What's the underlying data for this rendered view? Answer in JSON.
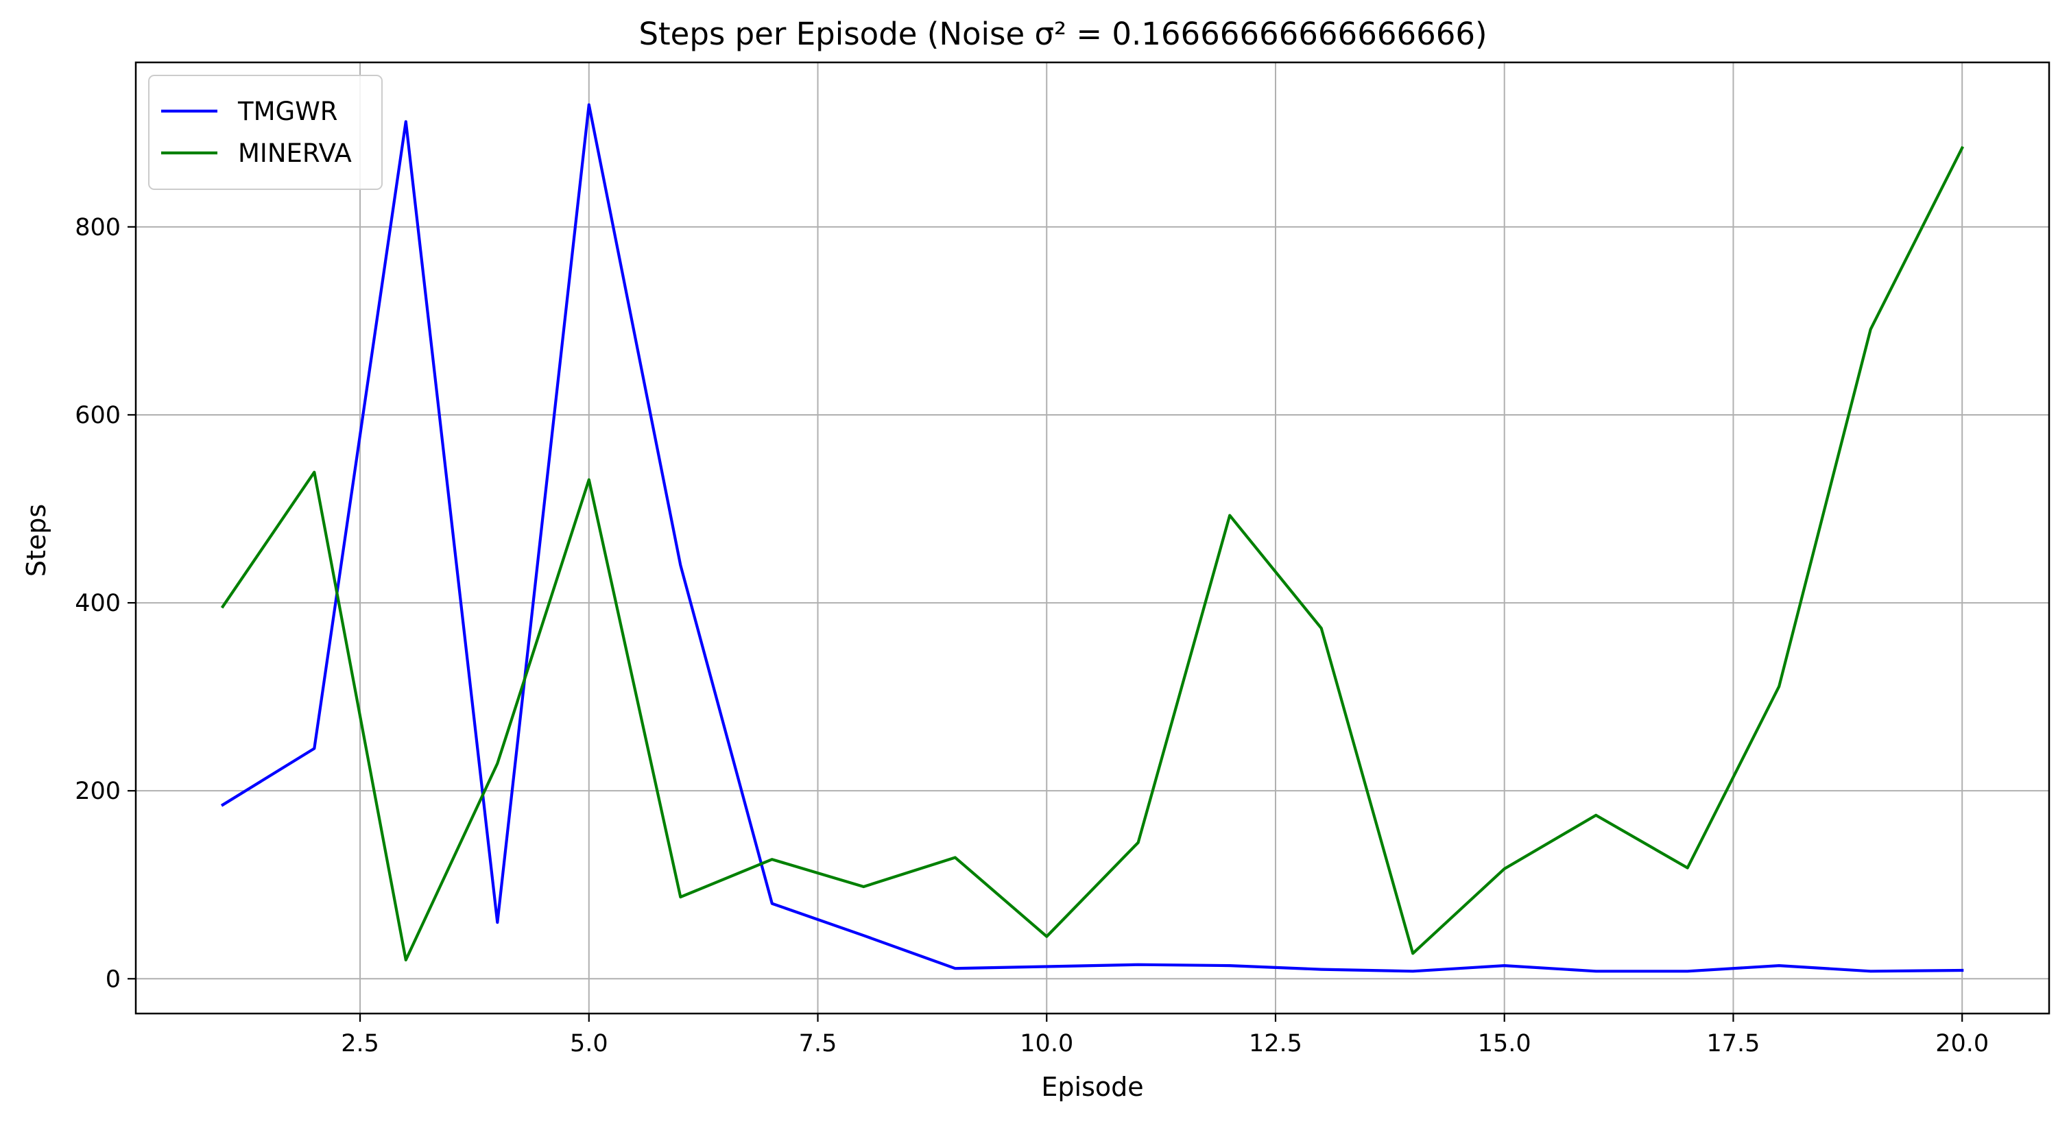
{
  "chart_data": {
    "type": "line",
    "title": "Steps per Episode (Noise σ² = 0.16666666666666666)",
    "xlabel": "Episode",
    "ylabel": "Steps",
    "xlim": [
      0.05,
      20.95
    ],
    "ylim": [
      -37,
      975
    ],
    "xticks": [
      2.5,
      5.0,
      7.5,
      10.0,
      12.5,
      15.0,
      17.5,
      20.0
    ],
    "xtick_labels": [
      "2.5",
      "5.0",
      "7.5",
      "10.0",
      "12.5",
      "15.0",
      "17.5",
      "20.0"
    ],
    "yticks": [
      0,
      200,
      400,
      600,
      800
    ],
    "ytick_labels": [
      "0",
      "200",
      "400",
      "600",
      "800"
    ],
    "grid": true,
    "legend_position": "upper-left",
    "x": [
      1,
      2,
      3,
      4,
      5,
      6,
      7,
      8,
      9,
      10,
      11,
      12,
      13,
      14,
      15,
      16,
      17,
      18,
      19,
      20
    ],
    "series": [
      {
        "name": "TMGWR",
        "color": "#0000ff",
        "values": [
          185,
          245,
          912,
          60,
          930,
          440,
          80,
          46,
          11,
          13,
          15,
          14,
          10,
          8,
          14,
          8,
          8,
          14,
          8,
          9
        ]
      },
      {
        "name": "MINERVA",
        "color": "#008000",
        "values": [
          396,
          539,
          20,
          229,
          531,
          87,
          127,
          98,
          129,
          45,
          145,
          493,
          373,
          27,
          117,
          174,
          118,
          311,
          691,
          884
        ]
      }
    ]
  }
}
